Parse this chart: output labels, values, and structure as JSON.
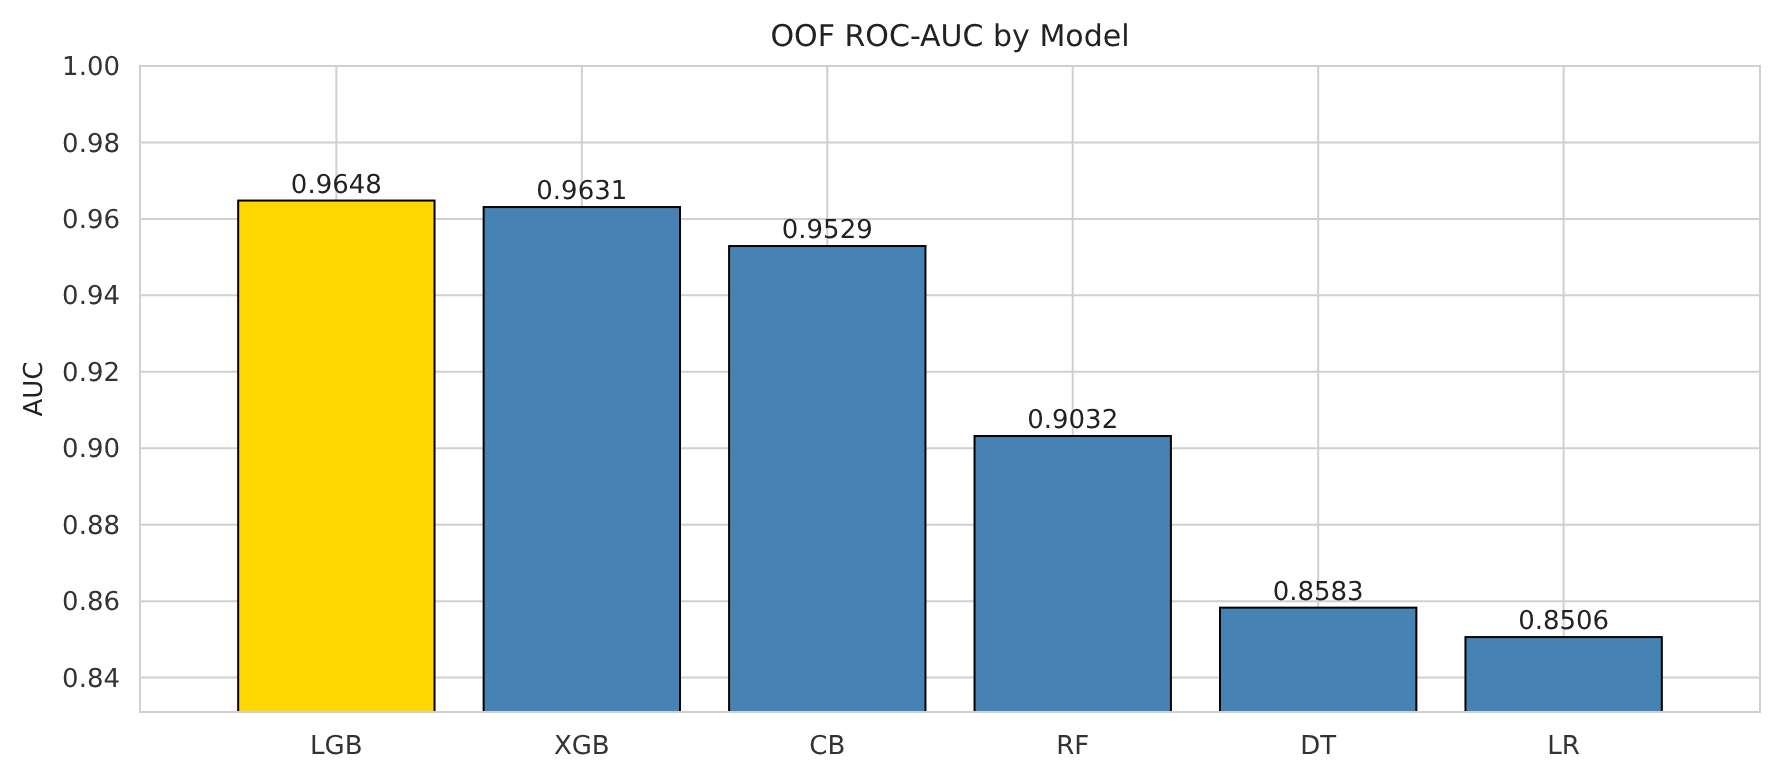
{
  "chart_data": {
    "type": "bar",
    "title": "OOF ROC-AUC by Model",
    "ylabel": "AUC",
    "categories": [
      "LGB",
      "XGB",
      "CB",
      "RF",
      "DT",
      "LR"
    ],
    "values": [
      0.9648,
      0.9631,
      0.9529,
      0.9032,
      0.8583,
      0.8506
    ],
    "colors": [
      "#ffd700",
      "#4682b4",
      "#4682b4",
      "#4682b4",
      "#4682b4",
      "#4682b4"
    ],
    "ylim": [
      0.831,
      1.0
    ],
    "yticks": [
      "0.84",
      "0.86",
      "0.88",
      "0.90",
      "0.92",
      "0.94",
      "0.96",
      "0.98",
      "1.00"
    ],
    "grid": true,
    "data_labels": true
  }
}
